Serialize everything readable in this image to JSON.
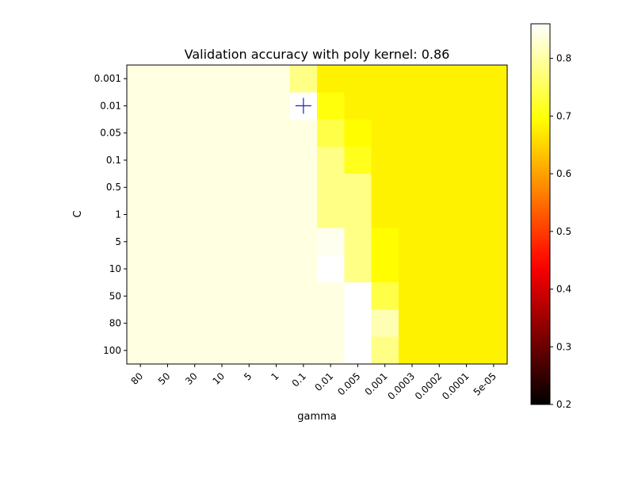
{
  "chart_data": {
    "type": "heatmap",
    "title": "Validation accuracy with poly kernel: 0.86",
    "xlabel": "gamma",
    "ylabel": "C",
    "x_categories": [
      "80",
      "50",
      "30",
      "10",
      "5",
      "1",
      "0.1",
      "0.01",
      "0.005",
      "0.001",
      "0.0003",
      "0.0002",
      "0.0001",
      "5e-05"
    ],
    "y_categories": [
      "0.001",
      "0.01",
      "0.05",
      "0.1",
      "0.5",
      "1",
      "5",
      "10",
      "50",
      "80",
      "100"
    ],
    "values": [
      [
        0.84,
        0.84,
        0.84,
        0.84,
        0.84,
        0.84,
        0.78,
        0.68,
        0.68,
        0.68,
        0.68,
        0.68,
        0.68,
        0.68
      ],
      [
        0.84,
        0.84,
        0.84,
        0.84,
        0.84,
        0.84,
        0.86,
        0.7,
        0.68,
        0.68,
        0.68,
        0.68,
        0.68,
        0.68
      ],
      [
        0.84,
        0.84,
        0.84,
        0.84,
        0.84,
        0.84,
        0.84,
        0.74,
        0.69,
        0.68,
        0.68,
        0.68,
        0.68,
        0.68
      ],
      [
        0.84,
        0.84,
        0.84,
        0.84,
        0.84,
        0.84,
        0.84,
        0.78,
        0.71,
        0.68,
        0.68,
        0.68,
        0.68,
        0.68
      ],
      [
        0.84,
        0.84,
        0.84,
        0.84,
        0.84,
        0.84,
        0.84,
        0.78,
        0.78,
        0.68,
        0.68,
        0.68,
        0.68,
        0.68
      ],
      [
        0.84,
        0.84,
        0.84,
        0.84,
        0.84,
        0.84,
        0.84,
        0.78,
        0.78,
        0.68,
        0.68,
        0.68,
        0.68,
        0.68
      ],
      [
        0.84,
        0.84,
        0.84,
        0.84,
        0.84,
        0.84,
        0.84,
        0.85,
        0.78,
        0.69,
        0.68,
        0.68,
        0.68,
        0.68
      ],
      [
        0.84,
        0.84,
        0.84,
        0.84,
        0.84,
        0.84,
        0.84,
        0.86,
        0.78,
        0.69,
        0.68,
        0.68,
        0.68,
        0.68
      ],
      [
        0.84,
        0.84,
        0.84,
        0.84,
        0.84,
        0.84,
        0.84,
        0.84,
        0.86,
        0.74,
        0.68,
        0.68,
        0.68,
        0.68
      ],
      [
        0.84,
        0.84,
        0.84,
        0.84,
        0.84,
        0.84,
        0.84,
        0.84,
        0.86,
        0.81,
        0.68,
        0.68,
        0.68,
        0.68
      ],
      [
        0.84,
        0.84,
        0.84,
        0.84,
        0.84,
        0.84,
        0.84,
        0.84,
        0.86,
        0.78,
        0.68,
        0.68,
        0.68,
        0.68
      ]
    ],
    "colormap": "hot",
    "vmin": 0.2,
    "vmax": 0.86,
    "colorbar_ticks": [
      "0.2",
      "0.3",
      "0.4",
      "0.5",
      "0.6",
      "0.7",
      "0.8"
    ],
    "best_marker": {
      "x": "0.1",
      "y": "0.01",
      "symbol": "+",
      "color": "#1f1fbf"
    },
    "x_tick_rotation_deg": 45
  }
}
